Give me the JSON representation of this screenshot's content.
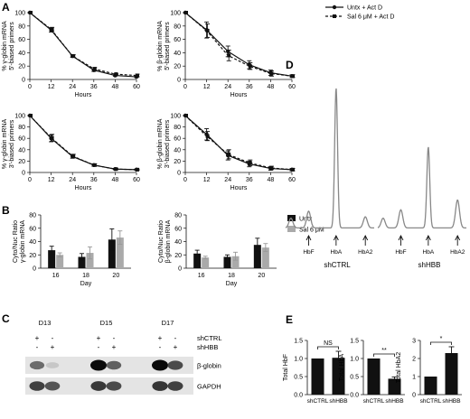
{
  "panel_labels": {
    "a": "A",
    "b": "B",
    "c": "C",
    "d": "D",
    "e": "E"
  },
  "colors": {
    "untx": "#111111",
    "sal": "#aaaaaa",
    "trace": "#888888",
    "ink": "#111111"
  },
  "chart_data": [
    {
      "id": "A1",
      "type": "line",
      "ylabel": "% γ-globin mRNA\n5'-biased primers",
      "xlabel": "Hours",
      "xticks": [
        0,
        12,
        24,
        36,
        48,
        60
      ],
      "yticks": [
        0,
        20,
        40,
        60,
        80,
        100
      ],
      "xlim": [
        0,
        60
      ],
      "ylim": [
        0,
        100
      ],
      "legend": {
        "placement": "top-right",
        "entries": [
          "Untx + Act D",
          "Sal 6 μM + Act D"
        ]
      },
      "series": [
        {
          "name": "Untx + Act D",
          "style": "solid",
          "x": [
            0,
            12,
            24,
            36,
            48,
            60
          ],
          "y": [
            100,
            74,
            35,
            14,
            6,
            4
          ],
          "err": [
            0,
            3,
            2,
            2,
            1,
            1
          ]
        },
        {
          "name": "Sal 6 μM + Act D",
          "style": "dashed",
          "x": [
            0,
            12,
            24,
            36,
            48,
            60
          ],
          "y": [
            100,
            75,
            35,
            16,
            8,
            6
          ],
          "err": [
            0,
            3,
            2,
            2,
            1,
            2
          ]
        }
      ]
    },
    {
      "id": "A2",
      "type": "line",
      "ylabel": "% β-globin mRNA\n5'-biased primers",
      "xlabel": "Hours",
      "xticks": [
        0,
        12,
        24,
        36,
        48,
        60
      ],
      "yticks": [
        0,
        20,
        40,
        60,
        80,
        100
      ],
      "xlim": [
        0,
        60
      ],
      "ylim": [
        0,
        100
      ],
      "series": [
        {
          "name": "Untx + Act D",
          "style": "solid",
          "x": [
            0,
            12,
            24,
            36,
            48,
            60
          ],
          "y": [
            100,
            74,
            42,
            22,
            10,
            5
          ],
          "err": [
            0,
            12,
            8,
            6,
            4,
            2
          ]
        },
        {
          "name": "Sal 6 μM + Act D",
          "style": "dashed",
          "x": [
            0,
            12,
            24,
            36,
            48,
            60
          ],
          "y": [
            100,
            73,
            36,
            20,
            9,
            5
          ],
          "err": [
            0,
            10,
            8,
            5,
            4,
            2
          ]
        }
      ]
    },
    {
      "id": "A3",
      "type": "line",
      "ylabel": "% γ-globin mRNA\n3'-biased primers",
      "xlabel": "Hours",
      "xticks": [
        0,
        12,
        24,
        36,
        48,
        60
      ],
      "yticks": [
        0,
        20,
        40,
        60,
        80,
        100
      ],
      "xlim": [
        0,
        60
      ],
      "ylim": [
        0,
        100
      ],
      "series": [
        {
          "name": "Untx + Act D",
          "style": "solid",
          "x": [
            0,
            12,
            24,
            36,
            48,
            60
          ],
          "y": [
            100,
            60,
            28,
            13,
            6,
            5
          ],
          "err": [
            0,
            6,
            3,
            2,
            1,
            1
          ]
        },
        {
          "name": "Sal 6 μM + Act D",
          "style": "dashed",
          "x": [
            0,
            12,
            24,
            36,
            48,
            60
          ],
          "y": [
            100,
            61,
            29,
            13,
            6,
            5
          ],
          "err": [
            0,
            6,
            3,
            2,
            1,
            1
          ]
        }
      ]
    },
    {
      "id": "A4",
      "type": "line",
      "ylabel": "% β-globin mRNA\n3'-biased primers",
      "xlabel": "Hours",
      "xticks": [
        0,
        12,
        24,
        36,
        48,
        60
      ],
      "yticks": [
        0,
        20,
        40,
        60,
        80,
        100
      ],
      "xlim": [
        0,
        60
      ],
      "ylim": [
        0,
        100
      ],
      "series": [
        {
          "name": "Untx + Act D",
          "style": "solid",
          "x": [
            0,
            12,
            24,
            36,
            48,
            60
          ],
          "y": [
            100,
            67,
            30,
            15,
            7,
            5
          ],
          "err": [
            0,
            10,
            8,
            5,
            3,
            2
          ]
        },
        {
          "name": "Sal 6 μM + Act D",
          "style": "dashed",
          "x": [
            0,
            12,
            24,
            36,
            48,
            60
          ],
          "y": [
            100,
            64,
            32,
            17,
            8,
            5
          ],
          "err": [
            0,
            8,
            8,
            5,
            3,
            2
          ]
        }
      ]
    },
    {
      "id": "B1",
      "type": "bar",
      "ylabel": "Cyto/Nuc Ratio\nγ-globin mRNA",
      "xlabel": "Day",
      "categories": [
        "16",
        "18",
        "20"
      ],
      "yticks": [
        0,
        20,
        40,
        60,
        80
      ],
      "ylim": [
        0,
        80
      ],
      "series": [
        {
          "name": "Untx",
          "values": [
            27,
            17,
            43
          ],
          "err": [
            6,
            5,
            16
          ]
        },
        {
          "name": "Sal 6 μM",
          "values": [
            20,
            23,
            46
          ],
          "err": [
            3,
            9,
            10
          ]
        }
      ]
    },
    {
      "id": "B2",
      "type": "bar",
      "ylabel": "Cyto/Nuc Ratio\nβ-globin mRNA",
      "xlabel": "Day",
      "categories": [
        "16",
        "18",
        "20"
      ],
      "yticks": [
        0,
        20,
        40,
        60,
        80
      ],
      "ylim": [
        0,
        80
      ],
      "legend": {
        "placement": "top-right",
        "entries": [
          "Untx",
          "Sal 6 μM"
        ]
      },
      "series": [
        {
          "name": "Untx",
          "values": [
            22,
            17,
            35
          ],
          "err": [
            5,
            3,
            10
          ]
        },
        {
          "name": "Sal 6 μM",
          "values": [
            16,
            18,
            31
          ],
          "err": [
            2,
            6,
            6
          ]
        }
      ]
    },
    {
      "id": "E1",
      "type": "bar",
      "ylabel": "Total HbF",
      "categories": [
        "shCTRL",
        "shHBB"
      ],
      "yticks": [
        0,
        0.5,
        1.0,
        1.5
      ],
      "ylim": [
        0,
        1.5
      ],
      "values": [
        1.0,
        1.02
      ],
      "err": [
        0,
        0.18
      ],
      "significance": "NS"
    },
    {
      "id": "E2",
      "type": "bar",
      "ylabel": "Total HbA",
      "categories": [
        "shCTRL",
        "shHBB"
      ],
      "yticks": [
        0,
        0.5,
        1.0,
        1.5
      ],
      "ylim": [
        0,
        1.5
      ],
      "values": [
        1.0,
        0.44
      ],
      "err": [
        0,
        0.05
      ],
      "significance": "**"
    },
    {
      "id": "E3",
      "type": "bar",
      "ylabel": "Total HbA2",
      "categories": [
        "shCTRL",
        "shHBB"
      ],
      "yticks": [
        0,
        1,
        2,
        3
      ],
      "ylim": [
        0,
        3
      ],
      "values": [
        1.0,
        2.3
      ],
      "err": [
        0,
        0.35
      ],
      "significance": "*"
    }
  ],
  "blot": {
    "days": [
      "D13",
      "D15",
      "D17"
    ],
    "rows": [
      {
        "label": "shCTRL",
        "signs": [
          "+",
          "-",
          "+",
          "-",
          "+",
          "-"
        ]
      },
      {
        "label": "shHBB",
        "signs": [
          "-",
          "+",
          "-",
          "+",
          "-",
          "+"
        ]
      }
    ],
    "bands": [
      {
        "label": "β-globin",
        "intensities": [
          0.55,
          0.12,
          1.0,
          0.6,
          1.0,
          0.7
        ]
      },
      {
        "label": "GAPDH",
        "intensities": [
          0.75,
          0.65,
          0.78,
          0.7,
          0.8,
          0.75
        ]
      }
    ]
  },
  "hplc": {
    "traces": [
      {
        "name": "shCTRL",
        "peaks": [
          "HbF",
          "HbA",
          "HbA2"
        ],
        "heights": [
          0.12,
          1.0,
          0.08
        ]
      },
      {
        "name": "shHBB",
        "peaks": [
          "HbF",
          "HbA",
          "HbA2"
        ],
        "heights": [
          0.13,
          0.58,
          0.2
        ]
      }
    ]
  }
}
